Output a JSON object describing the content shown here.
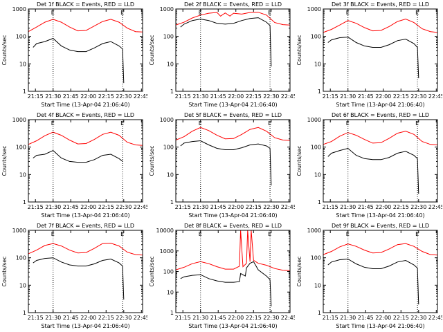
{
  "chart_data": [
    {
      "type": "line",
      "title": "Det 1f BLACK = Events, RED = LLD",
      "xlabel": "Start Time (13-Apr-04 21:06:40)",
      "ylabel": "Counts/sec",
      "yscale": "log",
      "ylim": [
        1,
        1000
      ],
      "xlim": [
        "21:09",
        "22:46"
      ],
      "xticks": [
        "21:15",
        "21:30",
        "21:45",
        "22:00",
        "22:15",
        "22:30",
        "22:45"
      ],
      "yticks": [
        "1",
        "10",
        "100",
        "1000"
      ],
      "markers": [
        "E",
        "E"
      ],
      "vlines": [
        "21:30",
        "22:29"
      ],
      "series": [
        {
          "color": "#ff0000",
          "x": [
            "21:09",
            "21:16",
            "21:23",
            "21:30",
            "21:37",
            "21:44",
            "21:51",
            "21:58",
            "22:05",
            "22:12",
            "22:19",
            "22:26",
            "22:33",
            "22:40",
            "22:46"
          ],
          "values": [
            150,
            220,
            330,
            420,
            330,
            220,
            160,
            165,
            240,
            350,
            420,
            330,
            200,
            150,
            145
          ]
        },
        {
          "color": "#000000",
          "x": [
            "21:13",
            "21:16",
            "21:23",
            "21:30",
            "21:37",
            "21:44",
            "21:51",
            "21:58",
            "22:05",
            "22:12",
            "22:19",
            "22:26",
            "22:29",
            "22:30"
          ],
          "values": [
            40,
            55,
            65,
            85,
            45,
            32,
            28,
            28,
            38,
            55,
            65,
            45,
            35,
            2
          ]
        }
      ]
    },
    {
      "type": "line",
      "title": "Det 2f BLACK = Events, RED = LLD",
      "xlabel": "Start Time (13-Apr-04 21:06:40)",
      "ylabel": "Counts/sec",
      "yscale": "log",
      "ylim": [
        1,
        1000
      ],
      "xlim": [
        "21:09",
        "22:46"
      ],
      "xticks": [
        "21:15",
        "21:30",
        "21:45",
        "22:00",
        "22:15",
        "22:30",
        "22:45"
      ],
      "yticks": [
        "1",
        "10",
        "100",
        "1000"
      ],
      "markers": [
        "E",
        "E"
      ],
      "vlines": [
        "21:30",
        "22:29"
      ],
      "series": [
        {
          "color": "#ff0000",
          "x": [
            "21:09",
            "21:16",
            "21:23",
            "21:30",
            "21:37",
            "21:44",
            "21:47",
            "21:51",
            "21:55",
            "21:58",
            "22:05",
            "22:12",
            "22:19",
            "22:26",
            "22:33",
            "22:40",
            "22:46"
          ],
          "values": [
            260,
            330,
            470,
            600,
            700,
            750,
            550,
            720,
            550,
            700,
            650,
            750,
            760,
            600,
            320,
            270,
            260
          ]
        },
        {
          "color": "#000000",
          "x": [
            "21:13",
            "21:16",
            "21:23",
            "21:30",
            "21:37",
            "21:44",
            "21:51",
            "21:58",
            "22:05",
            "22:12",
            "22:19",
            "22:26",
            "22:29",
            "22:30"
          ],
          "values": [
            220,
            280,
            380,
            430,
            380,
            300,
            280,
            300,
            380,
            450,
            480,
            330,
            250,
            8
          ]
        }
      ]
    },
    {
      "type": "line",
      "title": "Det 3f BLACK = Events, RED = LLD",
      "xlabel": "Start Time (13-Apr-04 21:06:40)",
      "ylabel": "Counts/sec",
      "yscale": "log",
      "ylim": [
        1,
        1000
      ],
      "xlim": [
        "21:09",
        "22:46"
      ],
      "xticks": [
        "21:15",
        "21:30",
        "21:45",
        "22:00",
        "22:15",
        "22:30",
        "22:45"
      ],
      "yticks": [
        "1",
        "10",
        "100",
        "1000"
      ],
      "markers": [
        "E",
        "E"
      ],
      "vlines": [
        "21:30",
        "22:29"
      ],
      "series": [
        {
          "color": "#ff0000",
          "x": [
            "21:09",
            "21:16",
            "21:23",
            "21:30",
            "21:37",
            "21:44",
            "21:51",
            "21:58",
            "22:05",
            "22:12",
            "22:19",
            "22:26",
            "22:33",
            "22:40",
            "22:46"
          ],
          "values": [
            140,
            180,
            260,
            380,
            300,
            210,
            160,
            165,
            230,
            350,
            430,
            320,
            190,
            150,
            140
          ]
        },
        {
          "color": "#000000",
          "x": [
            "21:13",
            "21:16",
            "21:23",
            "21:30",
            "21:37",
            "21:44",
            "21:51",
            "21:58",
            "22:05",
            "22:12",
            "22:19",
            "22:26",
            "22:29",
            "22:30"
          ],
          "values": [
            60,
            75,
            90,
            95,
            60,
            45,
            40,
            40,
            50,
            70,
            80,
            55,
            40,
            3
          ]
        }
      ]
    },
    {
      "type": "line",
      "title": "Det 4f BLACK = Events, RED = LLD",
      "xlabel": "Start Time (13-Apr-04 21:06:40)",
      "ylabel": "Counts/sec",
      "yscale": "log",
      "ylim": [
        1,
        1000
      ],
      "xlim": [
        "21:09",
        "22:46"
      ],
      "xticks": [
        "21:15",
        "21:30",
        "21:45",
        "22:00",
        "22:15",
        "22:30",
        "22:45"
      ],
      "yticks": [
        "1",
        "10",
        "100",
        "1000"
      ],
      "markers": [
        "E",
        "E"
      ],
      "vlines": [
        "21:30",
        "22:29"
      ],
      "series": [
        {
          "color": "#ff0000",
          "x": [
            "21:09",
            "21:16",
            "21:23",
            "21:30",
            "21:37",
            "21:44",
            "21:51",
            "21:58",
            "22:05",
            "22:12",
            "22:19",
            "22:26",
            "22:33",
            "22:40",
            "22:46"
          ],
          "values": [
            125,
            170,
            260,
            350,
            270,
            180,
            130,
            135,
            190,
            290,
            350,
            270,
            150,
            120,
            115
          ]
        },
        {
          "color": "#000000",
          "x": [
            "21:13",
            "21:16",
            "21:23",
            "21:30",
            "21:37",
            "21:44",
            "21:51",
            "21:58",
            "22:05",
            "22:12",
            "22:19",
            "22:26",
            "22:29"
          ],
          "values": [
            40,
            50,
            55,
            75,
            40,
            30,
            28,
            28,
            35,
            50,
            55,
            38,
            30
          ]
        }
      ]
    },
    {
      "type": "line",
      "title": "Det 5f BLACK = Events, RED = LLD",
      "xlabel": "Start Time (13-Apr-04 21:06:40)",
      "ylabel": "Counts/sec",
      "yscale": "log",
      "ylim": [
        1,
        1000
      ],
      "xlim": [
        "21:09",
        "22:46"
      ],
      "xticks": [
        "21:15",
        "21:30",
        "21:45",
        "22:00",
        "22:15",
        "22:30",
        "22:45"
      ],
      "yticks": [
        "1",
        "10",
        "100",
        "1000"
      ],
      "markers": [
        "E",
        "E"
      ],
      "vlines": [
        "21:30",
        "22:29"
      ],
      "series": [
        {
          "color": "#ff0000",
          "x": [
            "21:09",
            "21:16",
            "21:23",
            "21:30",
            "21:37",
            "21:44",
            "21:51",
            "21:58",
            "22:05",
            "22:12",
            "22:19",
            "22:26",
            "22:33",
            "22:40",
            "22:46"
          ],
          "values": [
            180,
            240,
            380,
            520,
            400,
            270,
            200,
            205,
            290,
            440,
            520,
            380,
            220,
            180,
            175
          ]
        },
        {
          "color": "#000000",
          "x": [
            "21:13",
            "21:16",
            "21:23",
            "21:30",
            "21:37",
            "21:44",
            "21:51",
            "21:58",
            "22:05",
            "22:12",
            "22:19",
            "22:26",
            "22:29",
            "22:30"
          ],
          "values": [
            110,
            140,
            160,
            170,
            120,
            90,
            80,
            80,
            95,
            120,
            130,
            110,
            90,
            4
          ]
        }
      ]
    },
    {
      "type": "line",
      "title": "Det 6f BLACK = Events, RED = LLD",
      "xlabel": "Start Time (13-Apr-04 21:06:40)",
      "ylabel": "Counts/sec",
      "yscale": "log",
      "ylim": [
        1,
        1000
      ],
      "xlim": [
        "21:09",
        "22:46"
      ],
      "xticks": [
        "21:15",
        "21:30",
        "21:45",
        "22:00",
        "22:15",
        "22:30",
        "22:45"
      ],
      "yticks": [
        "1",
        "10",
        "100",
        "1000"
      ],
      "markers": [
        "E",
        "E"
      ],
      "vlines": [
        "21:30",
        "22:29"
      ],
      "series": [
        {
          "color": "#ff0000",
          "x": [
            "21:09",
            "21:16",
            "21:23",
            "21:30",
            "21:37",
            "21:44",
            "21:51",
            "21:58",
            "22:05",
            "22:12",
            "22:19",
            "22:26",
            "22:33",
            "22:40",
            "22:46"
          ],
          "values": [
            125,
            160,
            250,
            340,
            270,
            190,
            140,
            145,
            210,
            320,
            380,
            290,
            160,
            125,
            120
          ]
        },
        {
          "color": "#000000",
          "x": [
            "21:13",
            "21:16",
            "21:23",
            "21:30",
            "21:37",
            "21:44",
            "21:51",
            "21:58",
            "22:05",
            "22:12",
            "22:19",
            "22:26",
            "22:29",
            "22:30"
          ],
          "values": [
            45,
            60,
            75,
            90,
            50,
            38,
            35,
            35,
            42,
            60,
            70,
            50,
            38,
            2
          ]
        }
      ]
    },
    {
      "type": "line",
      "title": "Det 7f BLACK = Events, RED = LLD",
      "xlabel": "Start Time (13-Apr-04 21:06:40)",
      "ylabel": "Counts/sec",
      "yscale": "log",
      "ylim": [
        1,
        1000
      ],
      "xlim": [
        "21:09",
        "22:46"
      ],
      "xticks": [
        "21:15",
        "21:30",
        "21:45",
        "22:00",
        "22:15",
        "22:30",
        "22:45"
      ],
      "yticks": [
        "1",
        "10",
        "100",
        "1000"
      ],
      "markers": [
        "E",
        "E"
      ],
      "vlines": [
        "21:30",
        "22:29"
      ],
      "series": [
        {
          "color": "#ff0000",
          "x": [
            "21:09",
            "21:16",
            "21:23",
            "21:30",
            "21:37",
            "21:44",
            "21:51",
            "21:58",
            "22:05",
            "22:12",
            "22:19",
            "22:26",
            "22:33",
            "22:40",
            "22:46"
          ],
          "values": [
            140,
            190,
            280,
            330,
            270,
            190,
            150,
            155,
            220,
            330,
            340,
            270,
            160,
            130,
            125
          ]
        },
        {
          "color": "#000000",
          "x": [
            "21:13",
            "21:16",
            "21:23",
            "21:30",
            "21:37",
            "21:44",
            "21:51",
            "21:58",
            "22:05",
            "22:12",
            "22:19",
            "22:26",
            "22:29",
            "22:30"
          ],
          "values": [
            65,
            80,
            95,
            100,
            70,
            55,
            50,
            50,
            60,
            80,
            90,
            65,
            50,
            3
          ]
        }
      ]
    },
    {
      "type": "line",
      "title": "Det 8f BLACK = Events, RED = LLD",
      "xlabel": "Start Time (13-Apr-04 21:06:40)",
      "ylabel": "Counts/sec",
      "yscale": "log",
      "ylim": [
        1,
        10000
      ],
      "xlim": [
        "21:09",
        "22:46"
      ],
      "xticks": [
        "21:15",
        "21:30",
        "21:45",
        "22:00",
        "22:15",
        "22:30",
        "22:45"
      ],
      "yticks": [
        "1",
        "10",
        "100",
        "1000",
        "10000"
      ],
      "markers": [
        "E",
        "E"
      ],
      "vlines": [
        "21:30",
        "22:29"
      ],
      "series": [
        {
          "color": "#ff0000",
          "x": [
            "21:09",
            "21:16",
            "21:23",
            "21:30",
            "21:37",
            "21:44",
            "21:51",
            "21:58",
            "22:03",
            "22:04",
            "22:06",
            "22:09",
            "22:10",
            "22:12",
            "22:13",
            "22:15",
            "22:19",
            "22:26",
            "22:33",
            "22:40",
            "22:46"
          ],
          "values": [
            120,
            160,
            240,
            300,
            240,
            170,
            130,
            130,
            180,
            10000,
            170,
            250,
            10000,
            300,
            10000,
            350,
            250,
            200,
            140,
            115,
            110
          ]
        },
        {
          "color": "#000000",
          "x": [
            "21:13",
            "21:16",
            "21:23",
            "21:30",
            "21:37",
            "21:44",
            "21:51",
            "21:58",
            "22:03",
            "22:04",
            "22:08",
            "22:09",
            "22:12",
            "22:15",
            "22:19",
            "22:26",
            "22:29",
            "22:30"
          ],
          "values": [
            45,
            55,
            65,
            70,
            45,
            35,
            30,
            30,
            32,
            80,
            60,
            150,
            250,
            300,
            120,
            60,
            40,
            2
          ]
        }
      ]
    },
    {
      "type": "line",
      "title": "Det 9f BLACK = Events, RED = LLD",
      "xlabel": "Start Time (13-Apr-04 21:06:40)",
      "ylabel": "Counts/sec",
      "yscale": "log",
      "ylim": [
        1,
        1000
      ],
      "xlim": [
        "21:09",
        "22:46"
      ],
      "xticks": [
        "21:15",
        "21:30",
        "21:45",
        "22:00",
        "22:15",
        "22:30",
        "22:45"
      ],
      "yticks": [
        "1",
        "10",
        "100",
        "1000"
      ],
      "markers": [
        "E",
        "E"
      ],
      "vlines": [
        "21:30",
        "22:29"
      ],
      "series": [
        {
          "color": "#ff0000",
          "x": [
            "21:09",
            "21:16",
            "21:23",
            "21:30",
            "21:37",
            "21:44",
            "21:51",
            "21:58",
            "22:05",
            "22:12",
            "22:19",
            "22:26",
            "22:33",
            "22:40",
            "22:46"
          ],
          "values": [
            130,
            170,
            250,
            320,
            260,
            190,
            150,
            155,
            210,
            300,
            330,
            260,
            170,
            130,
            125
          ]
        },
        {
          "color": "#000000",
          "x": [
            "21:13",
            "21:16",
            "21:23",
            "21:30",
            "21:37",
            "21:44",
            "21:51",
            "21:58",
            "22:05",
            "22:12",
            "22:19",
            "22:26",
            "22:29",
            "22:30"
          ],
          "values": [
            55,
            70,
            85,
            90,
            60,
            45,
            40,
            40,
            50,
            70,
            80,
            55,
            42,
            2
          ]
        }
      ]
    }
  ]
}
